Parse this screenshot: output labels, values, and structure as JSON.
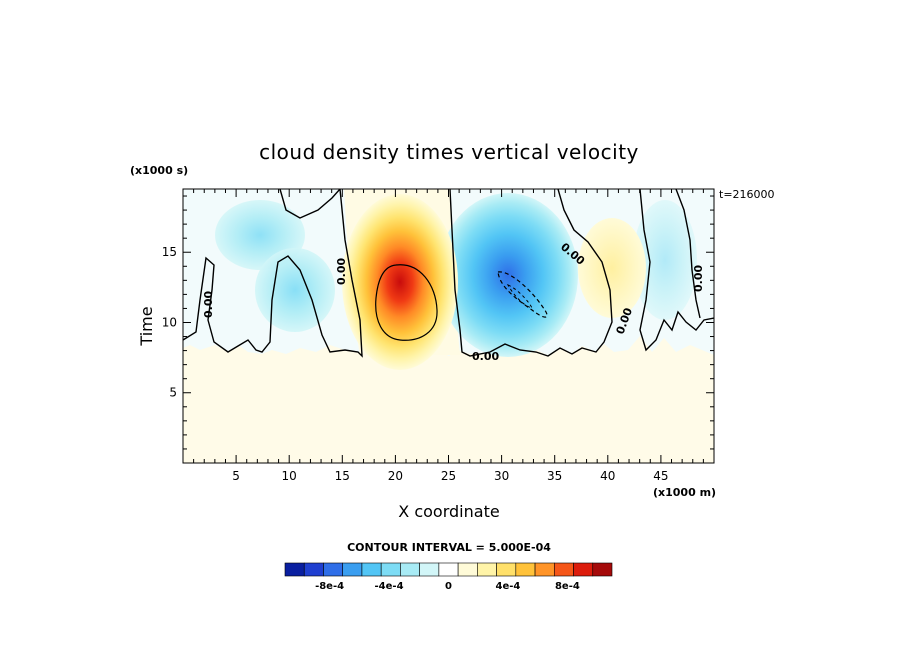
{
  "chart_data": {
    "type": "heatmap",
    "title": "cloud density times vertical velocity",
    "xlabel": "X coordinate",
    "ylabel": "Time",
    "x_units": "(x1000 m)",
    "y_units": "(x1000 s)",
    "time_note": "t=216000",
    "xlim": [
      0,
      50
    ],
    "ylim": [
      0,
      19.5
    ],
    "x_ticks": [
      5,
      10,
      15,
      20,
      25,
      30,
      35,
      40,
      45
    ],
    "y_ticks": [
      5,
      10,
      15
    ],
    "contour_interval_text": "CONTOUR INTERVAL = 5.000E-04",
    "contour_zero_label": "0.00",
    "colorbar": {
      "min": -0.0011,
      "max": 0.0011,
      "labels": [
        {
          "value": -0.0008,
          "text": "-8e-4"
        },
        {
          "value": -0.0004,
          "text": "-4e-4"
        },
        {
          "value": 0,
          "text": "0"
        },
        {
          "value": 0.0004,
          "text": "4e-4"
        },
        {
          "value": 0.0008,
          "text": "8e-4"
        }
      ],
      "colors": [
        "#0a1fa0",
        "#1f3fd0",
        "#2f6ee8",
        "#3a9ef0",
        "#52c5f5",
        "#7ddcf5",
        "#a8ebf5",
        "#d2f6f8",
        "#ffffff",
        "#fffbd8",
        "#fff4a8",
        "#ffe06a",
        "#ffc23a",
        "#ff9428",
        "#f55618",
        "#dc1c0c",
        "#a50a0a"
      ]
    },
    "cloud_base_time": 8,
    "features": [
      {
        "kind": "updraft",
        "x": 20.8,
        "y": 11.5,
        "peak": 0.00105
      },
      {
        "kind": "downdraft",
        "x": 31.5,
        "y": 12.5,
        "peak": -0.00065
      },
      {
        "kind": "weak-negative",
        "x": 11,
        "y": 13,
        "peak": -0.00025
      },
      {
        "kind": "weak-negative",
        "x": 7,
        "y": 17,
        "peak": -0.00015
      },
      {
        "kind": "weak-negative",
        "x": 44,
        "y": 16,
        "peak": -0.0001
      },
      {
        "kind": "weak-positive",
        "x": 40.5,
        "y": 14,
        "peak": 0.00012
      }
    ]
  }
}
